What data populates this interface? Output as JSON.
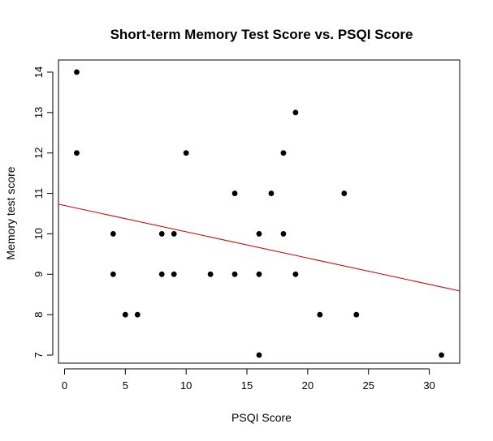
{
  "chart_data": {
    "type": "scatter",
    "title": "Short-term Memory Test Score vs. PSQI Score",
    "xlabel": "PSQI Score",
    "ylabel": "Memory test score",
    "xlim": [
      -0.5,
      32.5
    ],
    "ylim": [
      6.8,
      14.3
    ],
    "xticks": [
      0,
      5,
      10,
      15,
      20,
      25,
      30
    ],
    "yticks": [
      7,
      8,
      9,
      10,
      11,
      12,
      13,
      14
    ],
    "grid": false,
    "legend": "none",
    "point_color": "#000000",
    "line_color": "#cc0000",
    "points": [
      {
        "x": 1,
        "y": 14
      },
      {
        "x": 1,
        "y": 12
      },
      {
        "x": 4,
        "y": 10
      },
      {
        "x": 4,
        "y": 9
      },
      {
        "x": 5,
        "y": 8
      },
      {
        "x": 6,
        "y": 8
      },
      {
        "x": 8,
        "y": 10
      },
      {
        "x": 8,
        "y": 9
      },
      {
        "x": 9,
        "y": 10
      },
      {
        "x": 9,
        "y": 9
      },
      {
        "x": 10,
        "y": 12
      },
      {
        "x": 12,
        "y": 9
      },
      {
        "x": 14,
        "y": 11
      },
      {
        "x": 14,
        "y": 9
      },
      {
        "x": 16,
        "y": 10
      },
      {
        "x": 16,
        "y": 9
      },
      {
        "x": 16,
        "y": 7
      },
      {
        "x": 17,
        "y": 11
      },
      {
        "x": 18,
        "y": 12
      },
      {
        "x": 18,
        "y": 10
      },
      {
        "x": 19,
        "y": 13
      },
      {
        "x": 19,
        "y": 9
      },
      {
        "x": 21,
        "y": 8
      },
      {
        "x": 23,
        "y": 11
      },
      {
        "x": 24,
        "y": 8
      },
      {
        "x": 31,
        "y": 7
      }
    ],
    "regression_line": {
      "intercept": 10.7,
      "slope": -0.065
    }
  }
}
